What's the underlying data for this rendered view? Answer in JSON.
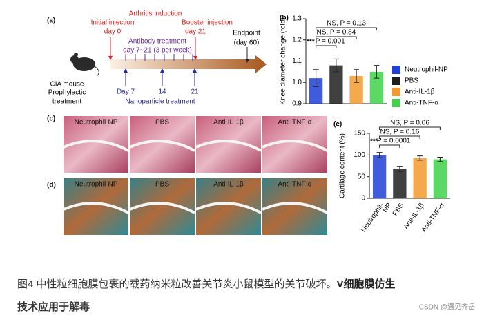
{
  "panel_a": {
    "label": "(a)",
    "arthritis": "Arthritis induction",
    "initial_1": "Initial injection",
    "initial_2": "day 0",
    "booster_1": "Booster injection",
    "booster_2": "day 21",
    "antibody_1": "Antibody treatment",
    "antibody_2": "day 7~21 (3 per week)",
    "endpoint_1": "Endpoint",
    "endpoint_2": "(day 60)",
    "mouse_1": "CIA mouse",
    "mouse_2": "Prophylactic",
    "mouse_3": "treatment",
    "np_days": [
      "Day 7",
      "14",
      "21"
    ],
    "nanoparticle": "Nanoparticle treatment"
  },
  "chart_b": {
    "label": "(b)",
    "type": "bar",
    "y_label": "Knee diameter change (fold)",
    "ylim": [
      0.9,
      1.3
    ],
    "yticks": [
      0.9,
      {
        "value": 1.0,
        "label": "1.0"
      },
      1.1,
      1.2,
      1.3
    ],
    "values": [
      1.02,
      1.08,
      1.03,
      1.05
    ],
    "errors": [
      0.04,
      0.03,
      0.03,
      0.03
    ],
    "comparisons": [
      {
        "label": "NS, P = 0.13",
        "span": [
          0,
          3
        ]
      },
      {
        "label": "NS, P = 0.84",
        "span": [
          0,
          2
        ]
      },
      {
        "label": "P = 0.001",
        "stars": "***",
        "span": [
          0,
          1
        ]
      }
    ]
  },
  "legend": [
    {
      "name": "Neutrophil-NP",
      "color": "#1f3fd6"
    },
    {
      "name": "PBS",
      "color": "#1e1e1e"
    },
    {
      "name": "Anti-IL-1β",
      "color": "#f39a2e"
    },
    {
      "name": "Anti-TNF-α",
      "color": "#3fd24a"
    }
  ],
  "panel_c": {
    "label": "(c)",
    "titles": [
      "Neutrophil-NP",
      "PBS",
      "Anti-IL-1β",
      "Anti-TNF-α"
    ]
  },
  "panel_d": {
    "label": "(d)",
    "titles": [
      "Neutrophil-NP",
      "PBS",
      "Anti-IL-1β",
      "Anti-TNF-α"
    ]
  },
  "chart_e": {
    "label": "(e)",
    "type": "bar",
    "y_label": "Cartilage content (%)",
    "ylim": [
      0,
      150
    ],
    "yticks": [
      0,
      50,
      100,
      150
    ],
    "categories": [
      [
        "Neutrophil-",
        "NP"
      ],
      [
        "PBS"
      ],
      [
        "Anti-IL-1β"
      ],
      [
        "Anti-TNF-α"
      ]
    ],
    "values": [
      100,
      68,
      93,
      90
    ],
    "errors": [
      6,
      6,
      5,
      5
    ],
    "comparisons": [
      {
        "label": "NS, P = 0.06",
        "span": [
          0,
          3
        ]
      },
      {
        "label": "NS, P = 0.16",
        "span": [
          0,
          2
        ]
      },
      {
        "label": "P = 0.0001",
        "stars": "***",
        "span": [
          0,
          1
        ]
      }
    ]
  },
  "caption": {
    "text": "图4 中性粒细胞膜包裹的载药纳米粒改善关节炎小鼠模型的关节破坏。",
    "bold_1": "V细胞膜仿生",
    "bold_2": "技术应用于解毒"
  },
  "watermark": "CSDN @遇见齐岳"
}
